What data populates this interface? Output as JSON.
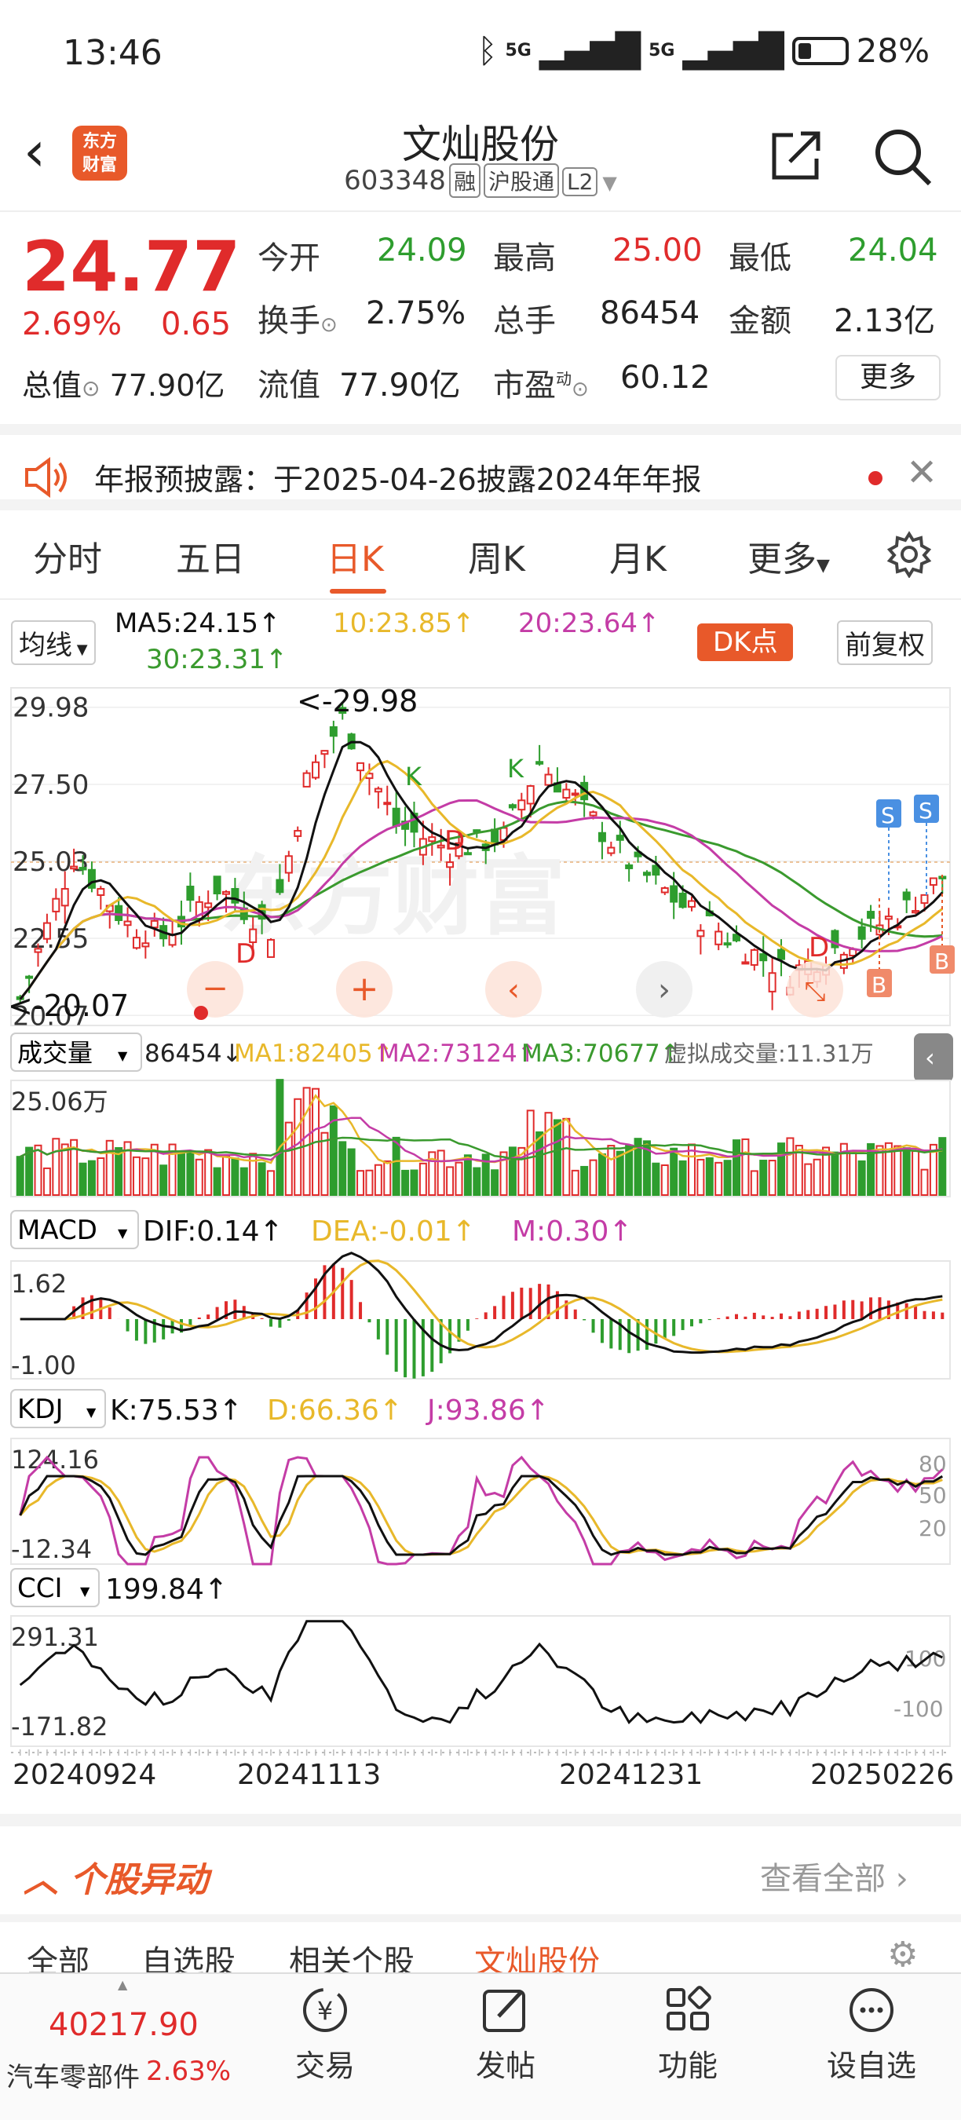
{
  "status_bar": {
    "time": "13:46",
    "signal1": "5G",
    "signal2": "5G",
    "battery": "28%"
  },
  "header": {
    "title": "文灿股份",
    "code": "603348",
    "tags": [
      "融",
      "沪股通",
      "L2"
    ],
    "logo_text": "东方财富"
  },
  "quote": {
    "price": "24.77",
    "change_pct": "2.69%",
    "change": "0.65",
    "open_label": "今开",
    "open": "24.09",
    "high_label": "最高",
    "high": "25.00",
    "low_label": "最低",
    "low": "24.04",
    "turnover_label": "换手",
    "turnover": "2.75%",
    "volume_label": "总手",
    "volume": "86454",
    "amount_label": "金额",
    "amount": "2.13亿",
    "mktcap_label": "总值",
    "mktcap": "77.90亿",
    "float_label": "流值",
    "float": "77.90亿",
    "pe_label": "市盈",
    "pe_sup": "动",
    "pe": "60.12",
    "more": "更多"
  },
  "notice": {
    "text": "年报预披露：于2025-04-26披露2024年年报"
  },
  "tabs": [
    "分时",
    "五日",
    "日K",
    "周K",
    "月K",
    "更多"
  ],
  "ma_legend": {
    "selector": "均线",
    "ma5": "MA5:24.15↑",
    "ma10": "10:23.85↑",
    "ma20": "20:23.64↑",
    "ma30": "30:23.31↑",
    "dk_button": "DK点",
    "adjust": "前复权"
  },
  "chart_data": [
    {
      "type": "candlestick",
      "yticks": [
        "29.98",
        "27.50",
        "25.03",
        "22.55",
        "20.07"
      ],
      "annotations": [
        "<-29.98",
        "<-20.07",
        "K",
        "K",
        "D",
        "D",
        "D",
        "S",
        "S",
        "B",
        "B"
      ]
    },
    {
      "type": "bar",
      "name": "成交量",
      "selector": "成交量",
      "current": "86454↓",
      "ma1": "MA1:82405↑",
      "ma2": "MA2:73124↑",
      "ma3": "MA3:70677↑",
      "virtual": "虚拟成交量:11.31万",
      "ytick": "25.06万"
    },
    {
      "type": "line",
      "name": "MACD",
      "selector": "MACD",
      "dif": "DIF:0.14↑",
      "dea": "DEA:-0.01↑",
      "m": "M:0.30↑",
      "yticks": [
        "1.62",
        "-1.00"
      ]
    },
    {
      "type": "line",
      "name": "KDJ",
      "selector": "KDJ",
      "k": "K:75.53↑",
      "d": "D:66.36↑",
      "j": "J:93.86↑",
      "yticks": [
        "124.16",
        "-12.34"
      ],
      "right_ticks": [
        "80",
        "50",
        "20"
      ]
    },
    {
      "type": "line",
      "name": "CCI",
      "selector": "CCI",
      "value": "199.84↑",
      "yticks": [
        "291.31",
        "-171.82"
      ],
      "right_ticks": [
        "100",
        "-100"
      ]
    }
  ],
  "x_dates": [
    "20240924",
    "20241113",
    "20241231",
    "20250226"
  ],
  "stock_moves": {
    "title": "个股异动",
    "view_all": "查看全部",
    "subtabs": [
      "全部",
      "自选股",
      "相关个股",
      "文灿股份"
    ]
  },
  "index_ticker": {
    "value": "40217.90",
    "name": "汽车零部件",
    "pct": "2.63%"
  },
  "nav": [
    "交易",
    "发帖",
    "功能",
    "设自选"
  ],
  "colors": {
    "up": "#e02b2b",
    "down": "#2e9d2e",
    "accent": "#e8592a",
    "ma5": "#111111",
    "ma10": "#e8b82a",
    "ma20": "#c43ca6",
    "ma30": "#3a9a2e"
  }
}
